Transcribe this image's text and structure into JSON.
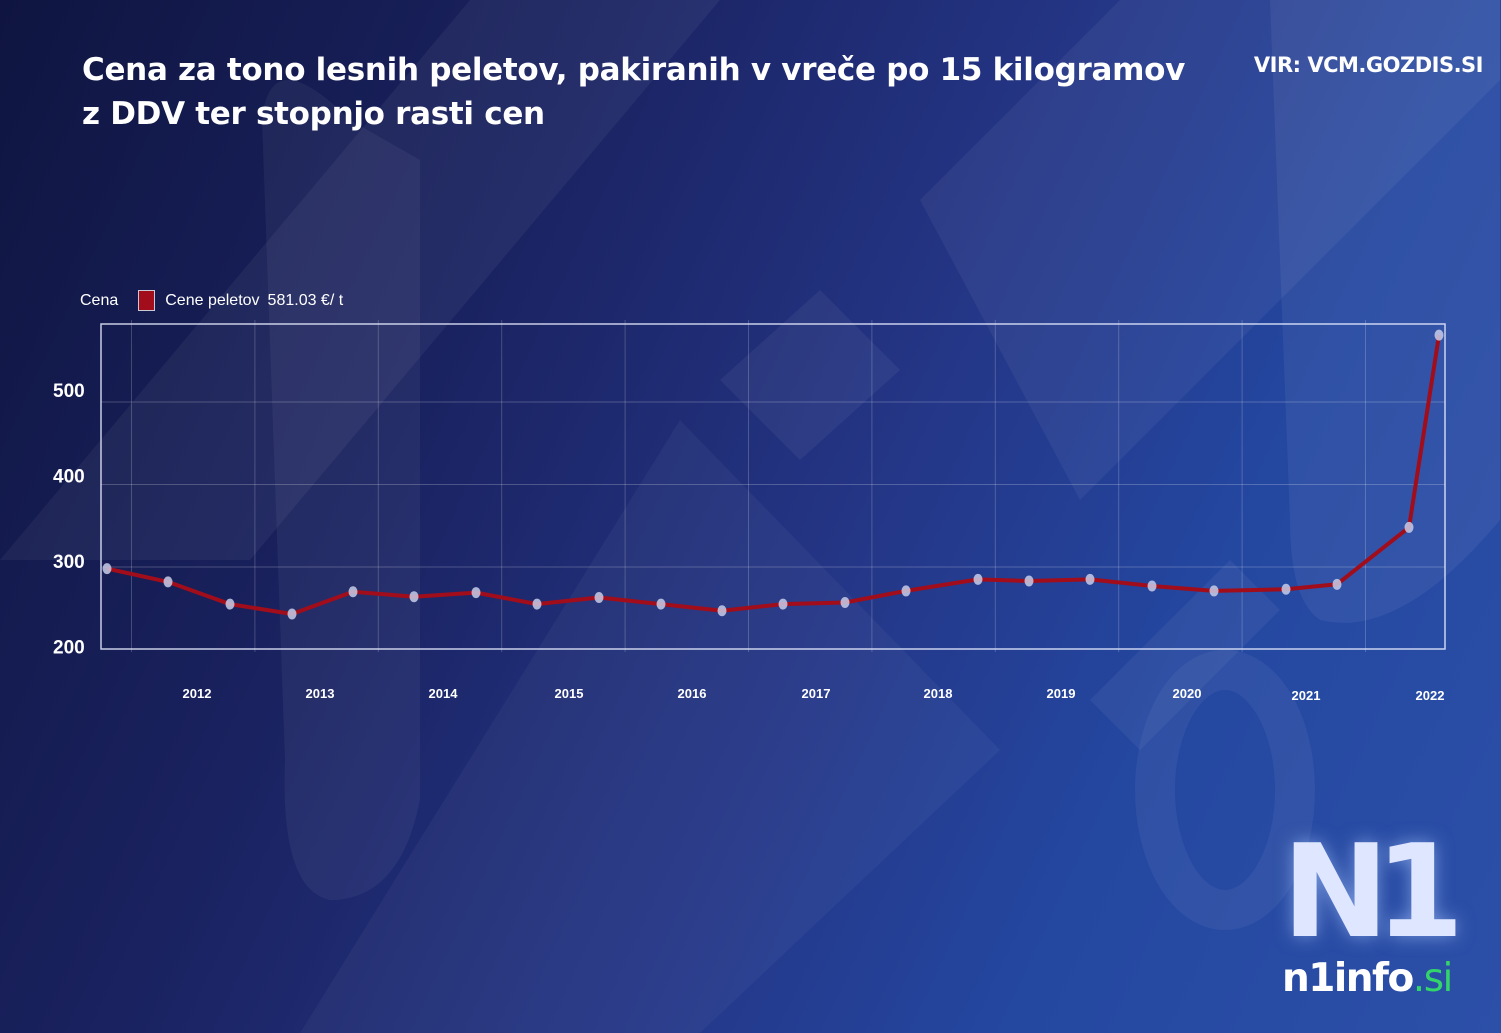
{
  "header": {
    "title_line1": "Cena za tono lesnih peletov, pakiranih v vreče po 15 kilogramov",
    "title_line2": "z DDV ter stopnjo rasti cen",
    "source": "VIR: VCM.GOZDIS.SI"
  },
  "legend": {
    "axis_name": "Cena",
    "series_label": "Cene peletov",
    "series_value": "581.03 €/ t",
    "series_color": "#a10d1b"
  },
  "logo": {
    "mark": "N1",
    "text": "n1info",
    "tld": ".si",
    "tld_color": "#33d56a"
  },
  "chart_data": {
    "type": "line",
    "title": "Cena za tono lesnih peletov, pakiranih v vreče po 15 kilogramov z DDV ter stopnjo rasti cen",
    "xlabel": "",
    "ylabel": "Cena",
    "ylim": [
      200,
      590
    ],
    "yticks": [
      200,
      300,
      400,
      500
    ],
    "xtick_labels": [
      "2012",
      "2013",
      "2014",
      "2015",
      "2016",
      "2017",
      "2018",
      "2019",
      "2020",
      "2021",
      "2022"
    ],
    "grid": true,
    "legend_position": "top-left",
    "series": [
      {
        "name": "Cene peletov",
        "color": "#a10d1b",
        "latest_value_label": "581.03 €/ t",
        "values": [
          298,
          282,
          255,
          243,
          270,
          264,
          269,
          255,
          263,
          255,
          247,
          255,
          257,
          271,
          285,
          283,
          285,
          277,
          271,
          273,
          279,
          348,
          581.03
        ]
      }
    ],
    "point_count": 23,
    "source": "VIR: VCM.GOZDIS.SI"
  }
}
